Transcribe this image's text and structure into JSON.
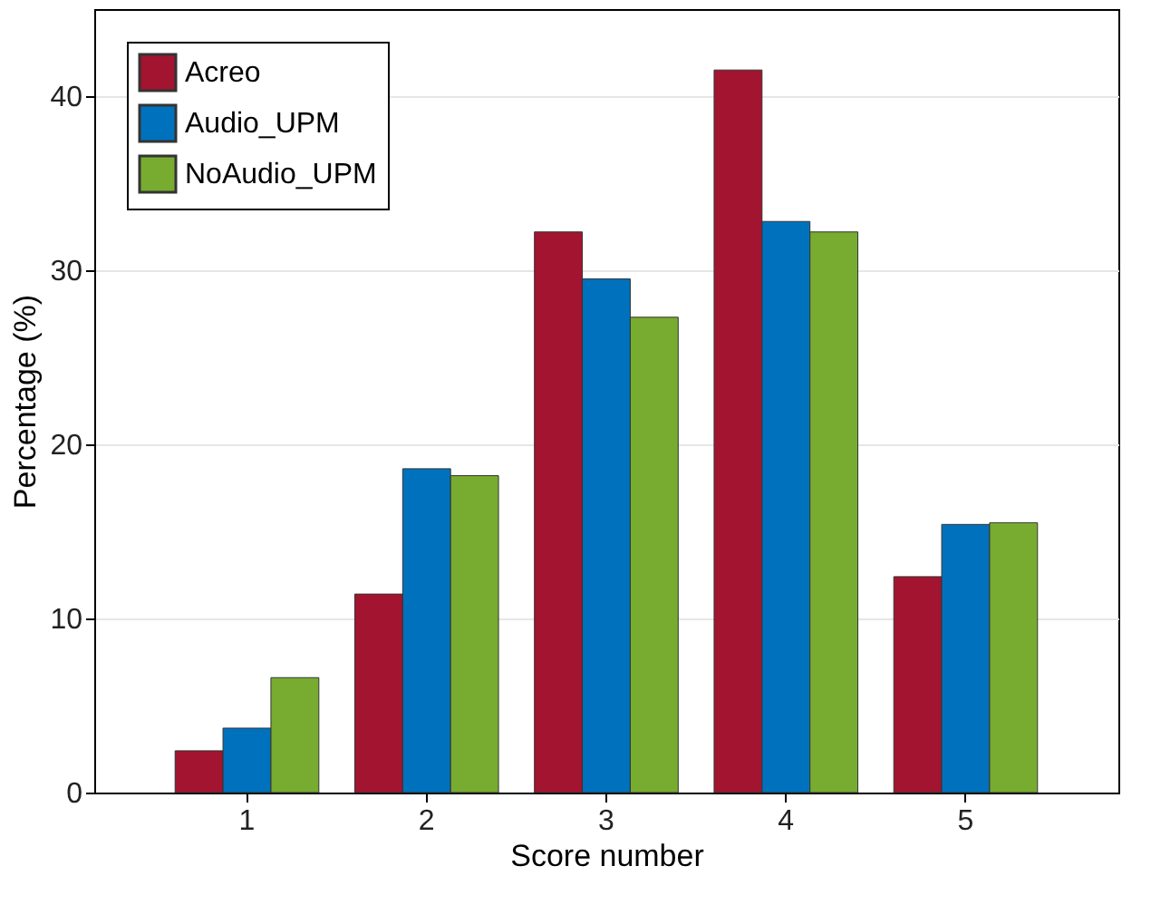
{
  "chart_data": {
    "type": "bar",
    "xlabel": "Score number",
    "ylabel": "Percentage (%)",
    "categories": [
      "1",
      "2",
      "3",
      "4",
      "5"
    ],
    "series": [
      {
        "name": "Acreo",
        "color": "#a2142f",
        "values": [
          2.4,
          11.4,
          32.2,
          41.5,
          12.4
        ]
      },
      {
        "name": "Audio_UPM",
        "color": "#0072bd",
        "values": [
          3.7,
          18.6,
          29.5,
          32.8,
          15.4
        ]
      },
      {
        "name": "NoAudio_UPM",
        "color": "#77ac30",
        "values": [
          6.6,
          18.2,
          27.3,
          32.2,
          15.5
        ]
      }
    ],
    "ylim": [
      0,
      45
    ],
    "yticks": [
      0,
      10,
      20,
      30,
      40
    ],
    "grid": "y",
    "legend": "top left"
  }
}
